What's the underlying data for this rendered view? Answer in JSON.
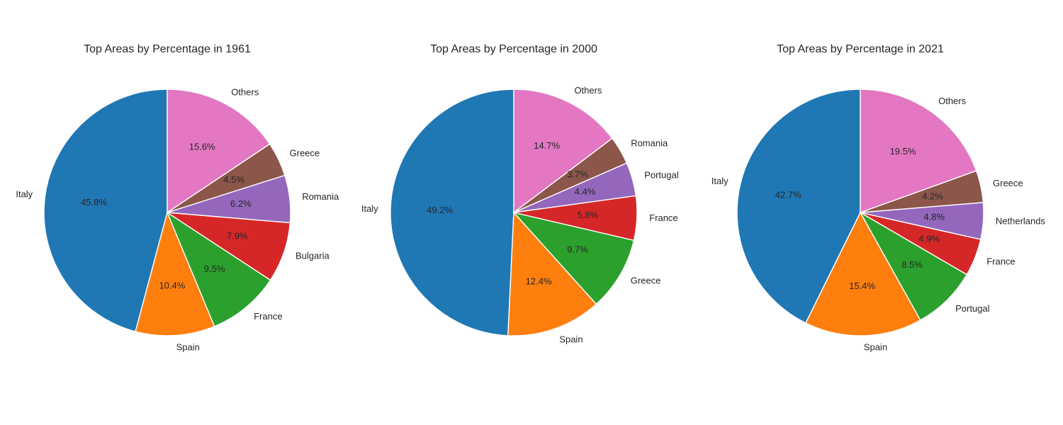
{
  "colors": {
    "Italy": "#1f77b4",
    "Spain": "#ff7f0e",
    "slot3": "#2ca02c",
    "slot4": "#d62728",
    "slot5": "#9467bd",
    "slot6": "#8c564b",
    "Others": "#e377c2"
  },
  "chart_data": [
    {
      "type": "pie",
      "title": "Top Areas by Percentage in 1961",
      "start_angle_deg": 90,
      "direction": "counterclockwise",
      "labels": [
        "Italy",
        "Spain",
        "France",
        "Bulgaria",
        "Romania",
        "Greece",
        "Others"
      ],
      "values": [
        45.8,
        10.4,
        9.5,
        7.9,
        6.2,
        4.5,
        15.6
      ],
      "value_labels": [
        "45.8%",
        "10.4%",
        "9.5%",
        "7.9%",
        "6.2%",
        "4.5%",
        "15.6%"
      ],
      "colors": [
        "#1f77b4",
        "#ff7f0e",
        "#2ca02c",
        "#d62728",
        "#9467bd",
        "#8c564b",
        "#e377c2"
      ]
    },
    {
      "type": "pie",
      "title": "Top Areas by Percentage in 2000",
      "start_angle_deg": 90,
      "direction": "counterclockwise",
      "labels": [
        "Italy",
        "Spain",
        "Greece",
        "France",
        "Portugal",
        "Romania",
        "Others"
      ],
      "values": [
        49.2,
        12.4,
        9.7,
        5.8,
        4.4,
        3.7,
        14.7
      ],
      "value_labels": [
        "49.2%",
        "12.4%",
        "9.7%",
        "5.8%",
        "4.4%",
        "3.7%",
        "14.7%"
      ],
      "colors": [
        "#1f77b4",
        "#ff7f0e",
        "#2ca02c",
        "#d62728",
        "#9467bd",
        "#8c564b",
        "#e377c2"
      ]
    },
    {
      "type": "pie",
      "title": "Top Areas by Percentage in 2021",
      "start_angle_deg": 90,
      "direction": "counterclockwise",
      "labels": [
        "Italy",
        "Spain",
        "Portugal",
        "France",
        "Netherlands",
        "Greece",
        "Others"
      ],
      "values": [
        42.7,
        15.4,
        8.5,
        4.9,
        4.8,
        4.2,
        19.5
      ],
      "value_labels": [
        "42.7%",
        "15.4%",
        "8.5%",
        "4.9%",
        "4.8%",
        "4.2%",
        "19.5%"
      ],
      "colors": [
        "#1f77b4",
        "#ff7f0e",
        "#2ca02c",
        "#d62728",
        "#9467bd",
        "#8c564b",
        "#e377c2"
      ]
    }
  ]
}
